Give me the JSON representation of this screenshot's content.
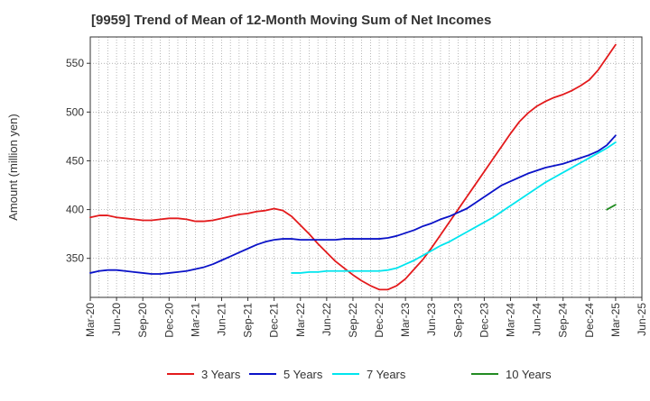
{
  "chart_data": {
    "type": "line",
    "title": "[9959]  Trend of Mean of 12-Month Moving Sum of Net Incomes",
    "xlabel": "",
    "ylabel": "Amount (million yen)",
    "ylim": [
      310,
      577
    ],
    "yticks": [
      350,
      400,
      450,
      500,
      550
    ],
    "xlim": [
      "2020-03",
      "2025-06"
    ],
    "xticks": [
      "Mar-20",
      "Jun-20",
      "Sep-20",
      "Dec-20",
      "Mar-21",
      "Jun-21",
      "Sep-21",
      "Dec-21",
      "Mar-22",
      "Jun-22",
      "Sep-22",
      "Dec-22",
      "Mar-23",
      "Jun-23",
      "Sep-23",
      "Dec-23",
      "Mar-24",
      "Jun-24",
      "Sep-24",
      "Dec-24",
      "Mar-25",
      "Jun-25"
    ],
    "grid": true,
    "legend_position": "bottom",
    "series": [
      {
        "name": "3 Years",
        "color": "#e31a1c",
        "points": [
          [
            "2020-03",
            392
          ],
          [
            "2020-04",
            394
          ],
          [
            "2020-05",
            394
          ],
          [
            "2020-06",
            392
          ],
          [
            "2020-07",
            391
          ],
          [
            "2020-08",
            390
          ],
          [
            "2020-09",
            389
          ],
          [
            "2020-10",
            389
          ],
          [
            "2020-11",
            390
          ],
          [
            "2020-12",
            391
          ],
          [
            "2021-01",
            391
          ],
          [
            "2021-02",
            390
          ],
          [
            "2021-03",
            388
          ],
          [
            "2021-04",
            388
          ],
          [
            "2021-05",
            389
          ],
          [
            "2021-06",
            391
          ],
          [
            "2021-07",
            393
          ],
          [
            "2021-08",
            395
          ],
          [
            "2021-09",
            396
          ],
          [
            "2021-10",
            398
          ],
          [
            "2021-11",
            399
          ],
          [
            "2021-12",
            401
          ],
          [
            "2022-01",
            399
          ],
          [
            "2022-02",
            393
          ],
          [
            "2022-03",
            384
          ],
          [
            "2022-04",
            375
          ],
          [
            "2022-05",
            365
          ],
          [
            "2022-06",
            356
          ],
          [
            "2022-07",
            347
          ],
          [
            "2022-08",
            340
          ],
          [
            "2022-09",
            333
          ],
          [
            "2022-10",
            327
          ],
          [
            "2022-11",
            322
          ],
          [
            "2022-12",
            318
          ],
          [
            "2023-01",
            318
          ],
          [
            "2023-02",
            322
          ],
          [
            "2023-03",
            329
          ],
          [
            "2023-04",
            339
          ],
          [
            "2023-05",
            349
          ],
          [
            "2023-06",
            361
          ],
          [
            "2023-07",
            374
          ],
          [
            "2023-08",
            387
          ],
          [
            "2023-09",
            400
          ],
          [
            "2023-10",
            413
          ],
          [
            "2023-11",
            426
          ],
          [
            "2023-12",
            439
          ],
          [
            "2024-01",
            452
          ],
          [
            "2024-02",
            465
          ],
          [
            "2024-03",
            478
          ],
          [
            "2024-04",
            490
          ],
          [
            "2024-05",
            499
          ],
          [
            "2024-06",
            506
          ],
          [
            "2024-07",
            511
          ],
          [
            "2024-08",
            515
          ],
          [
            "2024-09",
            518
          ],
          [
            "2024-10",
            522
          ],
          [
            "2024-11",
            527
          ],
          [
            "2024-12",
            533
          ],
          [
            "2025-01",
            543
          ],
          [
            "2025-02",
            556
          ],
          [
            "2025-03",
            569
          ]
        ]
      },
      {
        "name": "5 Years",
        "color": "#0a12c8",
        "points": [
          [
            "2020-03",
            335
          ],
          [
            "2020-04",
            337
          ],
          [
            "2020-05",
            338
          ],
          [
            "2020-06",
            338
          ],
          [
            "2020-07",
            337
          ],
          [
            "2020-08",
            336
          ],
          [
            "2020-09",
            335
          ],
          [
            "2020-10",
            334
          ],
          [
            "2020-11",
            334
          ],
          [
            "2020-12",
            335
          ],
          [
            "2021-01",
            336
          ],
          [
            "2021-02",
            337
          ],
          [
            "2021-03",
            339
          ],
          [
            "2021-04",
            341
          ],
          [
            "2021-05",
            344
          ],
          [
            "2021-06",
            348
          ],
          [
            "2021-07",
            352
          ],
          [
            "2021-08",
            356
          ],
          [
            "2021-09",
            360
          ],
          [
            "2021-10",
            364
          ],
          [
            "2021-11",
            367
          ],
          [
            "2021-12",
            369
          ],
          [
            "2022-01",
            370
          ],
          [
            "2022-02",
            370
          ],
          [
            "2022-03",
            369
          ],
          [
            "2022-04",
            369
          ],
          [
            "2022-05",
            369
          ],
          [
            "2022-06",
            369
          ],
          [
            "2022-07",
            369
          ],
          [
            "2022-08",
            370
          ],
          [
            "2022-09",
            370
          ],
          [
            "2022-10",
            370
          ],
          [
            "2022-11",
            370
          ],
          [
            "2022-12",
            370
          ],
          [
            "2023-01",
            371
          ],
          [
            "2023-02",
            373
          ],
          [
            "2023-03",
            376
          ],
          [
            "2023-04",
            379
          ],
          [
            "2023-05",
            383
          ],
          [
            "2023-06",
            386
          ],
          [
            "2023-07",
            390
          ],
          [
            "2023-08",
            393
          ],
          [
            "2023-09",
            397
          ],
          [
            "2023-10",
            401
          ],
          [
            "2023-11",
            407
          ],
          [
            "2023-12",
            413
          ],
          [
            "2024-01",
            419
          ],
          [
            "2024-02",
            425
          ],
          [
            "2024-03",
            429
          ],
          [
            "2024-04",
            433
          ],
          [
            "2024-05",
            437
          ],
          [
            "2024-06",
            440
          ],
          [
            "2024-07",
            443
          ],
          [
            "2024-08",
            445
          ],
          [
            "2024-09",
            447
          ],
          [
            "2024-10",
            450
          ],
          [
            "2024-11",
            453
          ],
          [
            "2024-12",
            456
          ],
          [
            "2025-01",
            460
          ],
          [
            "2025-02",
            466
          ],
          [
            "2025-03",
            476
          ]
        ]
      },
      {
        "name": "7 Years",
        "color": "#00e5ee",
        "points": [
          [
            "2022-02",
            335
          ],
          [
            "2022-03",
            335
          ],
          [
            "2022-04",
            336
          ],
          [
            "2022-05",
            336
          ],
          [
            "2022-06",
            337
          ],
          [
            "2022-07",
            337
          ],
          [
            "2022-08",
            337
          ],
          [
            "2022-09",
            337
          ],
          [
            "2022-10",
            337
          ],
          [
            "2022-11",
            337
          ],
          [
            "2022-12",
            337
          ],
          [
            "2023-01",
            338
          ],
          [
            "2023-02",
            340
          ],
          [
            "2023-03",
            344
          ],
          [
            "2023-04",
            348
          ],
          [
            "2023-05",
            353
          ],
          [
            "2023-06",
            358
          ],
          [
            "2023-07",
            363
          ],
          [
            "2023-08",
            367
          ],
          [
            "2023-09",
            372
          ],
          [
            "2023-10",
            377
          ],
          [
            "2023-11",
            382
          ],
          [
            "2023-12",
            387
          ],
          [
            "2024-01",
            392
          ],
          [
            "2024-02",
            398
          ],
          [
            "2024-03",
            404
          ],
          [
            "2024-04",
            410
          ],
          [
            "2024-05",
            416
          ],
          [
            "2024-06",
            422
          ],
          [
            "2024-07",
            428
          ],
          [
            "2024-08",
            433
          ],
          [
            "2024-09",
            438
          ],
          [
            "2024-10",
            443
          ],
          [
            "2024-11",
            448
          ],
          [
            "2024-12",
            453
          ],
          [
            "2025-01",
            458
          ],
          [
            "2025-02",
            463
          ],
          [
            "2025-03",
            469
          ]
        ]
      },
      {
        "name": "10 Years",
        "color": "#228b22",
        "points": [
          [
            "2025-02",
            400
          ],
          [
            "2025-03",
            405
          ]
        ]
      }
    ]
  }
}
